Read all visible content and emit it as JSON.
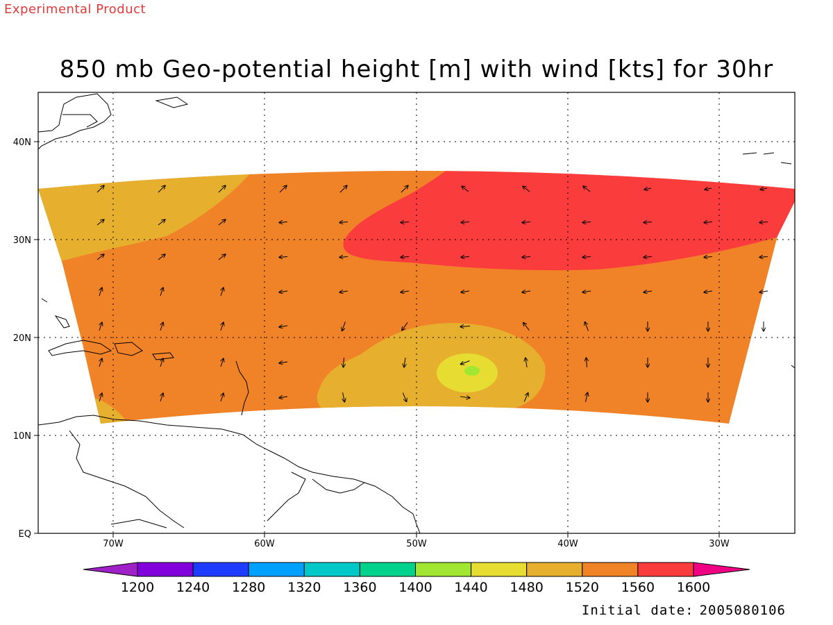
{
  "header": {
    "label": "Experimental Product"
  },
  "title": "850 mb Geo-potential height [m] with wind [kts] for 30hr",
  "footer": {
    "initial_date_label": "Initial date:",
    "initial_date_value": "2005080106"
  },
  "chart_data": {
    "type": "heatmap",
    "title": "850 mb Geo-potential height [m] with wind [kts] for 30hr",
    "x_axis": {
      "ticks": [
        "70W",
        "60W",
        "50W",
        "40W",
        "30W"
      ],
      "range_lon": [
        -75,
        -25
      ]
    },
    "y_axis": {
      "ticks": [
        "EQ",
        "10N",
        "20N",
        "30N",
        "40N"
      ],
      "range_lat": [
        0,
        45
      ]
    },
    "grid": true,
    "legend": {
      "position": "bottom",
      "levels": [
        1200,
        1240,
        1280,
        1320,
        1360,
        1400,
        1440,
        1480,
        1520,
        1560,
        1600
      ],
      "colors": [
        "#a020c8",
        "#8200dc",
        "#1e3cff",
        "#00a0ff",
        "#00c8c8",
        "#00d28c",
        "#a0e632",
        "#e6dc32",
        "#e6af2d",
        "#f08228",
        "#fa3c3c",
        "#f00082"
      ]
    },
    "regions": [
      {
        "level_range": [
          1520,
          1560
        ],
        "color": "#e6af2d",
        "area": "northwest corner, lat 27-35N, lon 75W-63W"
      },
      {
        "level_range": [
          1560,
          1600
        ],
        "color": "#f08228",
        "area": "bulk of domain, lat 12-35N"
      },
      {
        "level_range": [
          1600,
          null
        ],
        "color": "#fa3c3c",
        "area": "north-central/east, lat 27-35N, lon 54W-25W"
      },
      {
        "level_range": [
          1520,
          1560
        ],
        "color": "#e6af2d",
        "area": "southern trough lat 13-20N, lon 55W-43W"
      },
      {
        "level_range": [
          1480,
          1520
        ],
        "color": "#e6dc32",
        "area": "low center near 16N 47W"
      },
      {
        "level_range": [
          1440,
          1480
        ],
        "color": "#a0e632",
        "area": "core near 16N 46.5W"
      }
    ],
    "wind_field": "arrows: easterly flow across the subtropical Atlantic, northward/northwestward over the western Caribbean, cyclonic circulation around the low near 16N 47W"
  }
}
